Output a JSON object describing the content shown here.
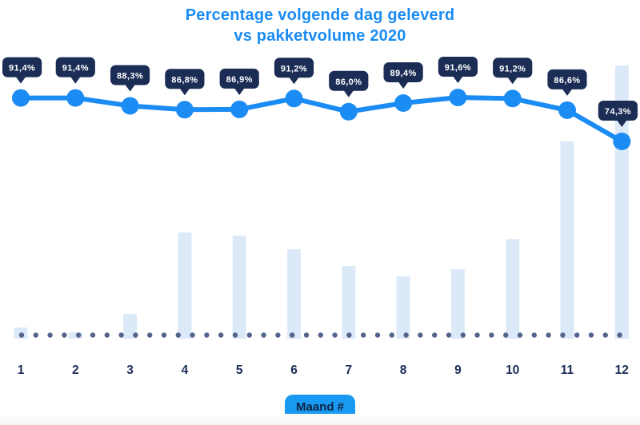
{
  "header": {
    "title_line1": "Percentage volgende dag geleverd",
    "title_line2": "vs pakketvolume 2020"
  },
  "colors": {
    "accent_blue": "#1b8cf3",
    "badge_blue": "#189af3",
    "badge_text_navy": "#0d2240",
    "tooltip_bg_navy": "#1b2c55",
    "tooltip_text": "#ffffff",
    "tick_label_navy": "#1b2c56",
    "bar_light_blue": "#dbe9f8",
    "baseline_dot_slate": "#54648c",
    "background": "#ffffff"
  },
  "chart_data": {
    "type": "line+bar combo",
    "title": "Percentage volgende dag geleverd vs pakketvolume 2020",
    "xlabel": "Maand #",
    "ylabel": "",
    "categories": [
      "1",
      "2",
      "3",
      "4",
      "5",
      "6",
      "7",
      "8",
      "9",
      "10",
      "11",
      "12"
    ],
    "series": [
      {
        "name": "Percentage volgende dag geleverd",
        "type": "line",
        "unit": "%",
        "values": [
          91.4,
          91.4,
          88.3,
          86.8,
          86.9,
          91.2,
          86.0,
          89.4,
          91.6,
          91.2,
          86.6,
          74.3
        ],
        "labels": [
          "91,4%",
          "91,4%",
          "88,3%",
          "86,8%",
          "86,9%",
          "91,2%",
          "86,0%",
          "89,4%",
          "91,6%",
          "91,2%",
          "86,6%",
          "74,3%"
        ],
        "ylim": [
          70,
          95
        ]
      },
      {
        "name": "Pakketvolume 2020",
        "type": "bar",
        "unit": "relative volume, estimated from bar heights (max month = 100)",
        "values": [
          4.1,
          2.3,
          9.1,
          38.9,
          37.7,
          32.7,
          26.6,
          22.8,
          25.4,
          36.5,
          72.2,
          100
        ]
      }
    ],
    "legend": false,
    "gridlines": false,
    "baseline_style": "dotted"
  }
}
